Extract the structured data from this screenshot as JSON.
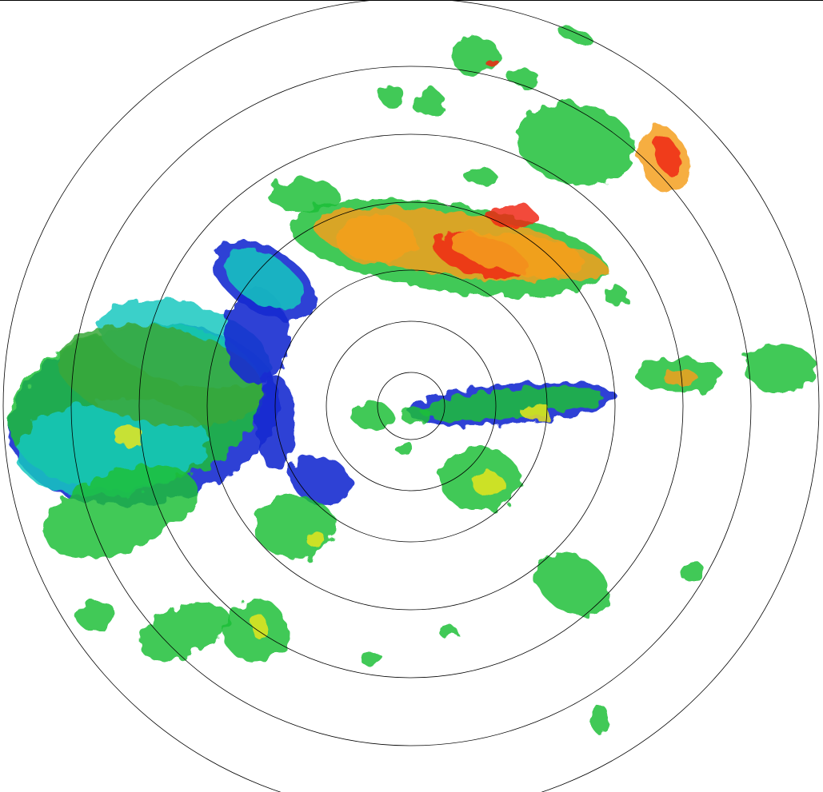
{
  "radar": {
    "range_rings": 7,
    "palette": {
      "weak": "#1a2bd0",
      "light": "#19c8c0",
      "moderate": "#1fbf3a",
      "green": "#3aa83a",
      "yellow": "#e6e61e",
      "orange": "#f5a01e",
      "heavy": "#f02814"
    },
    "ring_color": "#000000",
    "background": "#ffffff"
  }
}
